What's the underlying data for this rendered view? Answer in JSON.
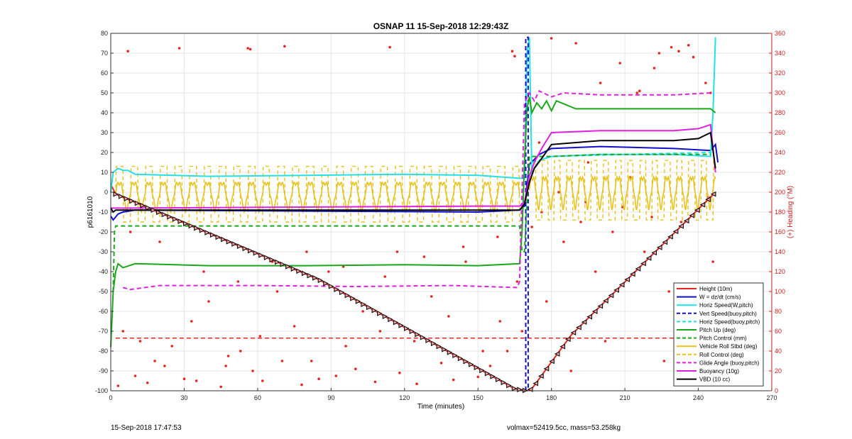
{
  "chart_data": {
    "type": "line",
    "title": "OSNAP 11 15-Sep-2018 12:29:43Z",
    "xlabel": "Time (minutes)",
    "ylabel": "p6161010",
    "y2label": "(+) Heading (°M)",
    "xlim": [
      0,
      270
    ],
    "ylim": [
      -100,
      80
    ],
    "y2lim": [
      0,
      360
    ],
    "xticks": [
      0,
      30,
      60,
      90,
      120,
      150,
      180,
      210,
      240,
      270
    ],
    "yticks": [
      -100,
      -90,
      -80,
      -70,
      -60,
      -50,
      -40,
      -30,
      -20,
      -10,
      0,
      10,
      20,
      30,
      40,
      50,
      60,
      70,
      80
    ],
    "y2ticks": [
      0,
      20,
      40,
      60,
      80,
      100,
      120,
      140,
      160,
      180,
      200,
      220,
      240,
      260,
      280,
      300,
      320,
      340,
      360
    ],
    "grid": true,
    "legend_position": "bottom-right",
    "series": [
      {
        "name": "Height (10m)",
        "color": "#e8231c",
        "style": "solid",
        "marker": "triangle",
        "x": [
          0,
          2,
          85,
          165,
          170,
          172,
          188,
          247
        ],
        "y": [
          4,
          -1,
          -44,
          -99,
          -100,
          -99,
          -72,
          0
        ]
      },
      {
        "name": "W = dz/dt (cm/s)",
        "color": "#1010cc",
        "style": "solid",
        "x": [
          0,
          1,
          3,
          5,
          10,
          80,
          150,
          167,
          169,
          171,
          175,
          180,
          200,
          230,
          245,
          247,
          248
        ],
        "y": [
          -12,
          -14,
          -11,
          -10,
          -9,
          -9.5,
          -10,
          -9,
          -7,
          14,
          19,
          22,
          23,
          22,
          21,
          24,
          15
        ]
      },
      {
        "name": "Horiz Speed(W,pitch)",
        "color": "#22e0e8",
        "style": "solid",
        "x": [
          0,
          1,
          3,
          5,
          7,
          10,
          40,
          80,
          120,
          150,
          167,
          169,
          170,
          171,
          172,
          175,
          180,
          200,
          230,
          245,
          246,
          247
        ],
        "y": [
          0,
          10,
          12,
          11,
          11,
          9,
          8,
          8.5,
          9,
          8.5,
          7,
          7,
          70,
          78,
          10,
          16,
          18,
          19,
          19,
          18,
          40,
          78
        ]
      },
      {
        "name": "Vert Speed(buoy,pitch)",
        "color": "#1010cc",
        "style": "dashed",
        "x": [
          169.5,
          169.5,
          170.5,
          170.5
        ],
        "y": [
          -100,
          78,
          78,
          -100
        ]
      },
      {
        "name": "Horiz Speed(buoy,pitch)",
        "color": "#22e0e8",
        "style": "dashed",
        "x": [
          172,
          180,
          210,
          245
        ],
        "y": [
          15,
          18,
          19,
          20
        ]
      },
      {
        "name": "Pitch Up (deg)",
        "color": "#1aa81a",
        "style": "solid",
        "x": [
          0,
          1,
          2,
          3,
          5,
          10,
          40,
          80,
          120,
          150,
          167,
          168,
          169,
          170,
          171,
          172,
          174,
          176,
          178,
          180,
          182,
          190,
          220,
          245,
          247
        ],
        "y": [
          -78,
          -50,
          -40,
          -36,
          -38,
          -36,
          -37,
          -37,
          -36.5,
          -37,
          -36,
          -20,
          15,
          42,
          48,
          40,
          45,
          42,
          46,
          41,
          46,
          42,
          42,
          42,
          40
        ]
      },
      {
        "name": "Pitch Control (mm)",
        "color": "#1aa81a",
        "style": "dashed",
        "x": [
          1,
          1.5,
          2,
          167,
          168,
          169,
          171,
          180,
          200,
          245
        ],
        "y": [
          -50,
          -20,
          -17,
          -17,
          -30,
          -30,
          18,
          18,
          19,
          19
        ]
      },
      {
        "name": "Vehicle Roll Stbd (deg)",
        "color": "#e8c21c",
        "style": "solid",
        "x": [],
        "y": []
      },
      {
        "name": "Roll Control (deg)",
        "color": "#e8c21c",
        "style": "dashed",
        "x": [],
        "y": []
      },
      {
        "name": "Glide Angle (buoy,pitch)",
        "color": "#e020e0",
        "style": "dashed",
        "x": [
          5,
          8,
          20,
          60,
          100,
          140,
          166,
          167,
          169,
          171,
          173,
          175,
          180,
          185,
          200,
          230,
          245
        ],
        "y": [
          -48,
          -49,
          -47,
          -47,
          -47.5,
          -47,
          -48,
          -45,
          45,
          50,
          46,
          51,
          48,
          50,
          49,
          49,
          50
        ]
      },
      {
        "name": "Buoyancy (10g)",
        "color": "#e020e0",
        "style": "solid",
        "x": [
          0,
          2,
          5,
          10,
          80,
          150,
          167,
          169,
          171,
          173,
          176,
          180,
          200,
          230,
          240,
          245,
          247
        ],
        "y": [
          -8,
          -8,
          -8,
          -8,
          -7.5,
          -7,
          -7,
          -5,
          8,
          15,
          22,
          30,
          31,
          31,
          32,
          34,
          10
        ]
      },
      {
        "name": "VBD (10 cc)",
        "color": "#000000",
        "style": "solid",
        "x": [
          0,
          1,
          2,
          5,
          80,
          150,
          167,
          169,
          171,
          173,
          176,
          180,
          200,
          230,
          240,
          245,
          247
        ],
        "y": [
          -8,
          -10,
          -9,
          -9,
          -9,
          -9,
          -9,
          -6,
          5,
          12,
          17,
          24,
          26,
          26,
          27,
          30,
          12
        ]
      }
    ],
    "roll_oscillation": {
      "color": "#e8c21c",
      "segments": [
        {
          "x_start": 2,
          "x_end": 167,
          "center": -1,
          "amplitude": 9,
          "period": 6
        },
        {
          "x_start": 171,
          "x_end": 247,
          "center": 1,
          "amplitude": 10,
          "period": 5
        }
      ]
    },
    "heading_reference": {
      "color": "#e8231c",
      "style": "dashed",
      "y2": 53,
      "x_start": 2,
      "x_end": 247
    },
    "heading_points": {
      "color": "#e8231c",
      "x": [
        7,
        28,
        56,
        57,
        71,
        114,
        164,
        165,
        190,
        200,
        208,
        216,
        224,
        232,
        238,
        243,
        180,
        215,
        222,
        229,
        236,
        245,
        175,
        195,
        212,
        5,
        12,
        18,
        25,
        33,
        40,
        47,
        53,
        61,
        68,
        75,
        82,
        89,
        96,
        103,
        110,
        117,
        124,
        131,
        138,
        145,
        152,
        159,
        166,
        10,
        22,
        35,
        48,
        58,
        70,
        85,
        100,
        118,
        135,
        150,
        162,
        3,
        15,
        30,
        45,
        62,
        78,
        92,
        108,
        125,
        140,
        155,
        168,
        178,
        185,
        192,
        198,
        205,
        218,
        228,
        235,
        242,
        246,
        176,
        188,
        202,
        226,
        240,
        8,
        20,
        38,
        52,
        66,
        80,
        95,
        112,
        128,
        144,
        158,
        172,
        183,
        194,
        209,
        221,
        233,
        244
      ],
      "y2": [
        342,
        345,
        345,
        344,
        347,
        346,
        342,
        337,
        350,
        310,
        330,
        302,
        340,
        342,
        336,
        310,
        355,
        300,
        325,
        346,
        348,
        300,
        250,
        230,
        215,
        60,
        50,
        30,
        45,
        70,
        90,
        25,
        40,
        55,
        100,
        65,
        30,
        120,
        45,
        80,
        60,
        140,
        50,
        95,
        75,
        130,
        40,
        70,
        110,
        15,
        25,
        10,
        35,
        20,
        30,
        12,
        22,
        18,
        28,
        14,
        40,
        5,
        8,
        12,
        4,
        10,
        6,
        15,
        9,
        7,
        11,
        25,
        60,
        90,
        150,
        170,
        120,
        160,
        140,
        100,
        70,
        80,
        130,
        180,
        20,
        50,
        30,
        90,
        160,
        150,
        120,
        110,
        130,
        140,
        125,
        115,
        135,
        145,
        155,
        165,
        200,
        190,
        185,
        175,
        170,
        195
      ]
    }
  },
  "footer": {
    "left": "15-Sep-2018 17:47:53",
    "right": "volmax=52419.5cc, mass=53.258kg"
  }
}
